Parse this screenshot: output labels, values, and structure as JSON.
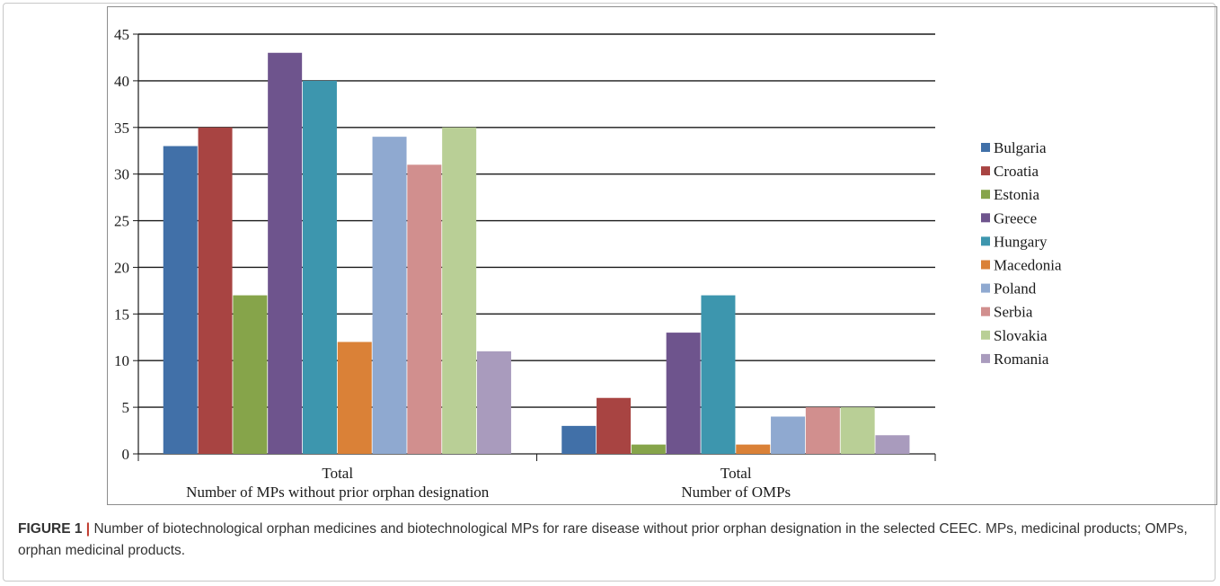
{
  "figure": {
    "label": "FIGURE 1",
    "separator": "|",
    "caption": "Number of biotechnological orphan medicines and biotechnological MPs for rare disease without prior orphan designation in the selected CEEC. MPs, medicinal products; OMPs, orphan medicinal products."
  },
  "chart_data": {
    "type": "bar",
    "categories": [
      [
        "Total",
        "Number of MPs without prior orphan designation"
      ],
      [
        "Total",
        "Number of OMPs"
      ]
    ],
    "ylim": [
      0,
      45
    ],
    "yticks": [
      0,
      5,
      10,
      15,
      20,
      25,
      30,
      35,
      40,
      45
    ],
    "grid": true,
    "legend_position": "right",
    "series": [
      {
        "name": "Bulgaria",
        "color": "#4170a8",
        "values": [
          33,
          3
        ]
      },
      {
        "name": "Croatia",
        "color": "#a84442",
        "values": [
          35,
          6
        ]
      },
      {
        "name": "Estonia",
        "color": "#86a44a",
        "values": [
          17,
          1
        ]
      },
      {
        "name": "Greece",
        "color": "#6e548d",
        "values": [
          43,
          13
        ]
      },
      {
        "name": "Hungary",
        "color": "#3d96ae",
        "values": [
          40,
          17
        ]
      },
      {
        "name": "Macedonia",
        "color": "#da8137",
        "values": [
          12,
          1
        ]
      },
      {
        "name": "Poland",
        "color": "#8fa9d0",
        "values": [
          34,
          4
        ]
      },
      {
        "name": "Serbia",
        "color": "#d18f8e",
        "values": [
          31,
          5
        ]
      },
      {
        "name": "Slovakia",
        "color": "#b9cf96",
        "values": [
          35,
          5
        ]
      },
      {
        "name": "Romania",
        "color": "#a99bbd",
        "values": [
          11,
          2
        ]
      }
    ]
  }
}
